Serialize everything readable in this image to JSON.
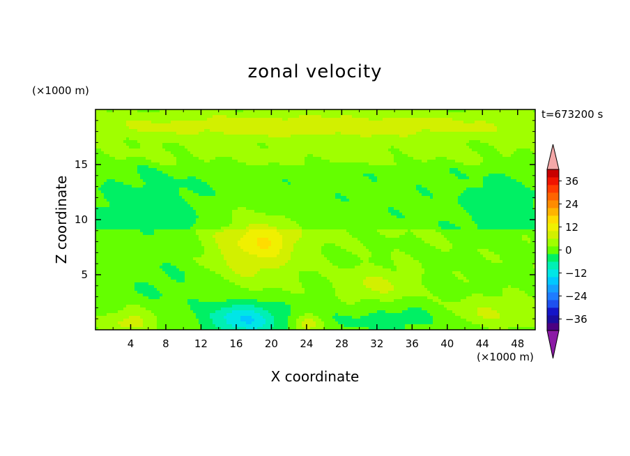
{
  "chart_data": {
    "type": "heatmap",
    "title": "zonal velocity",
    "xlabel": "X coordinate",
    "ylabel": "Z coordinate",
    "x_units": "(×1000 m)",
    "z_units": "(×1000 m)",
    "time_label": "t=673200 s",
    "xlim": [
      0,
      50
    ],
    "ylim": [
      0,
      20
    ],
    "x_ticks": [
      4,
      8,
      12,
      16,
      20,
      24,
      28,
      32,
      36,
      40,
      44,
      48
    ],
    "y_ticks": [
      5,
      10,
      15
    ],
    "grid": false,
    "colorbar": {
      "range": [
        -42,
        42
      ],
      "step": 4,
      "tick_labels": [
        "36",
        "24",
        "12",
        "0",
        "−12",
        "−24",
        "−36"
      ],
      "tick_values": [
        36,
        24,
        12,
        0,
        -12,
        -24,
        -36
      ],
      "extend": "both",
      "over_color": "#f4a8a8",
      "under_color": "#8b1aa5",
      "colors": [
        "#4b0082",
        "#1a0ca0",
        "#1414c8",
        "#1e50f0",
        "#1e7cff",
        "#14a0ff",
        "#00c8ff",
        "#00e6e6",
        "#00f0b4",
        "#00f064",
        "#64ff00",
        "#a0ff00",
        "#d2f000",
        "#f0f000",
        "#ffdc00",
        "#ffb400",
        "#ff8c00",
        "#ff6400",
        "#ff3c00",
        "#f01400",
        "#c80000"
      ]
    },
    "features": [
      {
        "x": 25,
        "z": 18.5,
        "value": 8,
        "sx": 30,
        "sz": 1.2
      },
      {
        "x": 25,
        "z": 16,
        "value": 2,
        "sx": 30,
        "sz": 1.0
      },
      {
        "x": 6,
        "z": 10.5,
        "value": -4,
        "sx": 6,
        "sz": 3
      },
      {
        "x": 46,
        "z": 11,
        "value": -4,
        "sx": 4,
        "sz": 2.5
      },
      {
        "x": 18,
        "z": 7.5,
        "value": 9,
        "sx": 5,
        "sz": 3.2
      },
      {
        "x": 20,
        "z": 8.2,
        "value": 5,
        "sx": 2.5,
        "sz": 1.2
      },
      {
        "x": 17,
        "z": 1,
        "value": -14,
        "sx": 4,
        "sz": 1.5
      },
      {
        "x": 8,
        "z": 4.5,
        "value": -3,
        "sx": 6,
        "sz": 2.5
      },
      {
        "x": 32,
        "z": 4,
        "value": 6,
        "sx": 4,
        "sz": 1.5
      },
      {
        "x": 34,
        "z": 1,
        "value": -4,
        "sx": 6,
        "sz": 1.2
      },
      {
        "x": 4,
        "z": 0.7,
        "value": 8,
        "sx": 3,
        "sz": 1.2
      },
      {
        "x": 45,
        "z": 1.5,
        "value": 6,
        "sx": 5,
        "sz": 1.5
      },
      {
        "x": 24,
        "z": 0.5,
        "value": 9,
        "sx": 1.5,
        "sz": 0.8
      }
    ]
  }
}
